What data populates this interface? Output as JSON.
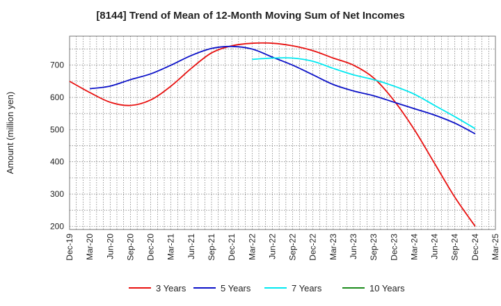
{
  "chart_data": {
    "type": "line",
    "title": "[8144]  Trend of Mean of 12-Month Moving Sum of Net Incomes",
    "xlabel": "",
    "ylabel": "Amount (million yen)",
    "ylim": [
      190,
      790
    ],
    "yticks": [
      200,
      300,
      400,
      500,
      600,
      700
    ],
    "categories": [
      "Dec-19",
      "Mar-20",
      "Jun-20",
      "Sep-20",
      "Dec-20",
      "Mar-21",
      "Jun-21",
      "Sep-21",
      "Dec-21",
      "Mar-22",
      "Jun-22",
      "Sep-22",
      "Dec-22",
      "Mar-23",
      "Jun-23",
      "Sep-23",
      "Dec-23",
      "Mar-24",
      "Jun-24",
      "Sep-24",
      "Dec-24",
      "Mar-25"
    ],
    "grid": true,
    "legend_position": "bottom",
    "series": [
      {
        "name": "3 Years",
        "color": "#e8100f",
        "values": [
          650,
          615,
          585,
          575,
          592,
          635,
          690,
          738,
          760,
          768,
          768,
          760,
          745,
          722,
          700,
          660,
          590,
          500,
          395,
          290,
          200,
          null
        ]
      },
      {
        "name": "5 Years",
        "color": "#0a10c8",
        "values": [
          null,
          627,
          635,
          655,
          673,
          700,
          730,
          752,
          758,
          750,
          725,
          700,
          670,
          640,
          620,
          605,
          585,
          565,
          545,
          520,
          487,
          null
        ]
      },
      {
        "name": "7 Years",
        "color": "#00e8f0",
        "values": [
          null,
          null,
          null,
          null,
          null,
          null,
          null,
          null,
          null,
          718,
          722,
          722,
          712,
          690,
          670,
          655,
          635,
          610,
          575,
          540,
          503,
          null
        ]
      },
      {
        "name": "10 Years",
        "color": "#1a8a1a",
        "values": [
          null,
          null,
          null,
          null,
          null,
          null,
          null,
          null,
          null,
          null,
          null,
          null,
          null,
          null,
          null,
          null,
          null,
          null,
          null,
          null,
          null,
          null
        ]
      }
    ]
  }
}
